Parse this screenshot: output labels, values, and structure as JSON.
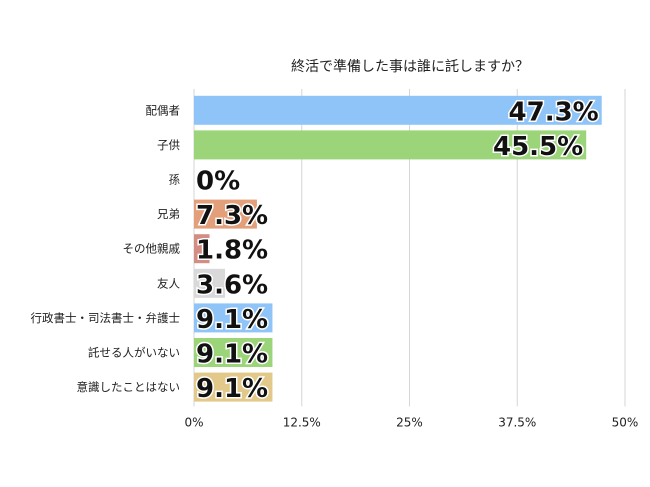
{
  "chart_data": {
    "type": "bar",
    "orientation": "horizontal",
    "title": "終活で準備した事は誰に託しますか？",
    "categories": [
      "配偶者",
      "子供",
      "孫",
      "兄弟",
      "その他親戚",
      "友人",
      "行政書士・司法書士・弁護士",
      "託せる人がいない",
      "意識したことはない"
    ],
    "values": [
      47.3,
      45.5,
      0,
      7.3,
      1.8,
      3.6,
      9.1,
      9.1,
      9.1
    ],
    "data_labels": [
      "47.3%",
      "45.5%",
      "0%",
      "7.3%",
      "1.8%",
      "3.6%",
      "9.1%",
      "9.1%",
      "9.1%"
    ],
    "colors": [
      "#8ec4f8",
      "#9bd479",
      "#9bd479",
      "#e39e7a",
      "#d48d83",
      "#d9d9d9",
      "#8ec4f8",
      "#9bd479",
      "#e2c98a"
    ],
    "xlim": [
      0,
      50
    ],
    "xticks": [
      0,
      12.5,
      25,
      37.5,
      50
    ],
    "xtick_labels": [
      "0%",
      "12.5%",
      "25%",
      "37.5%",
      "50%"
    ],
    "xlabel": "",
    "ylabel": "",
    "grid": true,
    "legend": "none"
  }
}
